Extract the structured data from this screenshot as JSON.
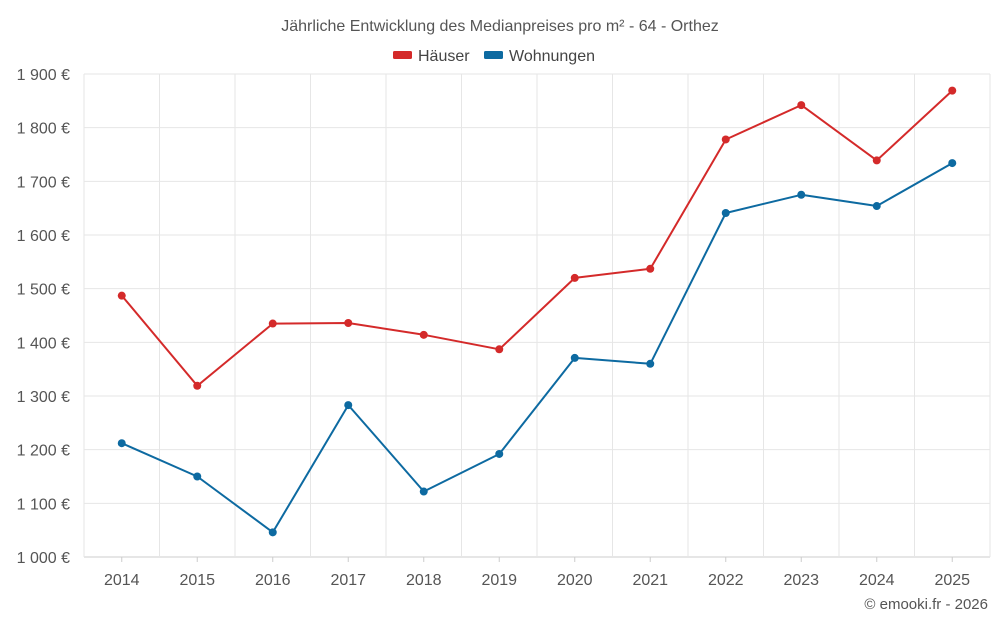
{
  "chart_data": {
    "type": "line",
    "title": "Jährliche Entwicklung des Medianpreises pro m² - 64 - Orthez",
    "categories": [
      "2014",
      "2015",
      "2016",
      "2017",
      "2018",
      "2019",
      "2020",
      "2021",
      "2022",
      "2023",
      "2024",
      "2025"
    ],
    "series": [
      {
        "name": "Häuser",
        "color": "#d42a2a",
        "values": [
          1487,
          1319,
          1435,
          1436,
          1414,
          1387,
          1520,
          1537,
          1778,
          1842,
          1739,
          1869
        ]
      },
      {
        "name": "Wohnungen",
        "color": "#0d6aa1",
        "values": [
          1212,
          1150,
          1046,
          1283,
          1122,
          1192,
          1371,
          1360,
          1641,
          1675,
          1654,
          1734
        ]
      }
    ],
    "yticks": [
      "1 000 €",
      "1 100 €",
      "1 200 €",
      "1 300 €",
      "1 400 €",
      "1 500 €",
      "1 600 €",
      "1 700 €",
      "1 800 €",
      "1 900 €"
    ],
    "ylim": [
      1000,
      1900
    ],
    "grid": true,
    "legend_position": "top-center",
    "xlabel": "",
    "ylabel": ""
  },
  "credit": "© emooki.fr - 2026"
}
